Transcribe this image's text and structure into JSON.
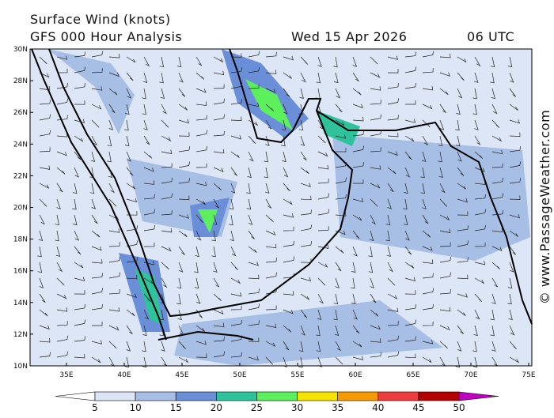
{
  "header": {
    "title": "Surface Wind (knots)",
    "subtitle": "GFS 000 Hour Analysis",
    "date": "Wed 15 Apr 2026",
    "time": "06 UTC"
  },
  "map": {
    "lat_labels": [
      "30N",
      "28N",
      "26N",
      "24N",
      "22N",
      "20N",
      "18N",
      "16N",
      "14N",
      "12N",
      "10N"
    ],
    "lon_labels": [
      "35E",
      "40E",
      "45E",
      "50E",
      "55E",
      "60E",
      "65E",
      "70E",
      "75E"
    ]
  },
  "colorbar": {
    "colors": [
      "#ffffff",
      "#dde6f6",
      "#a8bfe5",
      "#6a8fd8",
      "#2ec39b",
      "#5cf05c",
      "#f5e400",
      "#f59a00",
      "#ee3b3b",
      "#b40000",
      "#c000c0"
    ],
    "labels": [
      "5",
      "10",
      "15",
      "20",
      "25",
      "30",
      "35",
      "40",
      "45",
      "50"
    ]
  },
  "credit": "© www.PassageWeather.com"
}
